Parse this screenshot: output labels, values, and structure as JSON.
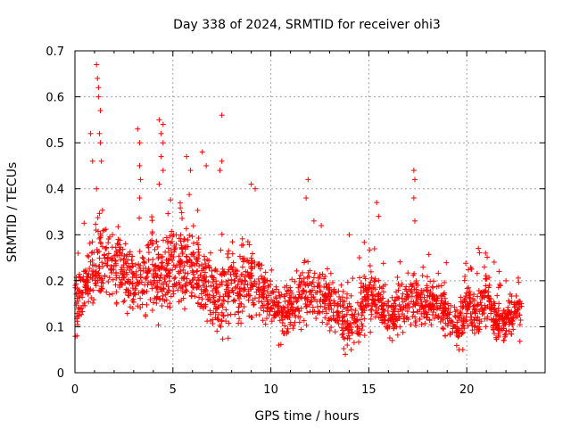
{
  "chart_data": {
    "type": "scatter",
    "title": "Day 338 of 2024, SRMTID for receiver ohi3",
    "xlabel": "GPS time / hours",
    "ylabel": "SRMTID / TECUs",
    "xlim": [
      0,
      24
    ],
    "ylim": [
      0,
      0.7
    ],
    "xticks": [
      0,
      5,
      10,
      15,
      20
    ],
    "xtick_labels": [
      "0",
      "5",
      "10",
      "15",
      "20"
    ],
    "yticks": [
      0,
      0.1,
      0.2,
      0.3,
      0.4,
      0.5,
      0.6,
      0.7
    ],
    "ytick_labels": [
      "0",
      "0.1",
      "0.2",
      "0.3",
      "0.4",
      "0.5",
      "0.6",
      "0.7"
    ],
    "grid": true,
    "marker": "plus",
    "series": [
      {
        "name": "SRMTID",
        "color": "#ff0000",
        "envelope": {
          "t": [
            0,
            0.5,
            1,
            1.5,
            2,
            2.5,
            3,
            3.5,
            4,
            4.5,
            5,
            5.5,
            6,
            6.5,
            7,
            7.5,
            8,
            8.5,
            9,
            9.5,
            10,
            10.5,
            11,
            11.5,
            12,
            12.5,
            13,
            13.5,
            14,
            14.5,
            15,
            15.5,
            16,
            16.5,
            17,
            17.5,
            18,
            18.5,
            19,
            19.5,
            20,
            20.5,
            21,
            21.5,
            22,
            22.5,
            22.8
          ],
          "center": [
            0.15,
            0.18,
            0.22,
            0.24,
            0.24,
            0.22,
            0.19,
            0.21,
            0.22,
            0.22,
            0.23,
            0.24,
            0.22,
            0.2,
            0.17,
            0.16,
            0.19,
            0.19,
            0.2,
            0.18,
            0.16,
            0.13,
            0.14,
            0.16,
            0.18,
            0.16,
            0.15,
            0.13,
            0.1,
            0.12,
            0.17,
            0.16,
            0.12,
            0.13,
            0.16,
            0.15,
            0.15,
            0.16,
            0.12,
            0.1,
            0.14,
            0.13,
            0.17,
            0.11,
            0.11,
            0.13,
            0.13
          ],
          "spread": [
            0.05,
            0.06,
            0.07,
            0.07,
            0.07,
            0.07,
            0.07,
            0.07,
            0.08,
            0.08,
            0.08,
            0.08,
            0.08,
            0.07,
            0.07,
            0.07,
            0.07,
            0.07,
            0.07,
            0.06,
            0.05,
            0.05,
            0.05,
            0.06,
            0.06,
            0.05,
            0.05,
            0.05,
            0.05,
            0.05,
            0.06,
            0.05,
            0.04,
            0.05,
            0.05,
            0.05,
            0.05,
            0.05,
            0.05,
            0.05,
            0.05,
            0.05,
            0.05,
            0.04,
            0.04,
            0.04,
            0.05
          ]
        },
        "spikes": [
          [
            1.1,
            0.67
          ],
          [
            1.15,
            0.64
          ],
          [
            1.2,
            0.62
          ],
          [
            1.2,
            0.6
          ],
          [
            1.3,
            0.57
          ],
          [
            1.25,
            0.52
          ],
          [
            1.3,
            0.5
          ],
          [
            1.35,
            0.46
          ],
          [
            0.8,
            0.52
          ],
          [
            0.9,
            0.46
          ],
          [
            1.1,
            0.4
          ],
          [
            3.2,
            0.53
          ],
          [
            3.3,
            0.5
          ],
          [
            3.3,
            0.45
          ],
          [
            3.35,
            0.42
          ],
          [
            3.3,
            0.38
          ],
          [
            4.3,
            0.55
          ],
          [
            4.5,
            0.54
          ],
          [
            4.4,
            0.52
          ],
          [
            4.5,
            0.5
          ],
          [
            4.4,
            0.47
          ],
          [
            4.5,
            0.44
          ],
          [
            4.3,
            0.41
          ],
          [
            5.7,
            0.47
          ],
          [
            5.9,
            0.44
          ],
          [
            6.5,
            0.48
          ],
          [
            6.7,
            0.45
          ],
          [
            7.5,
            0.56
          ],
          [
            7.5,
            0.46
          ],
          [
            7.4,
            0.44
          ],
          [
            9.0,
            0.41
          ],
          [
            9.2,
            0.4
          ],
          [
            11.9,
            0.42
          ],
          [
            11.8,
            0.38
          ],
          [
            12.2,
            0.33
          ],
          [
            14.0,
            0.3
          ],
          [
            15.4,
            0.37
          ],
          [
            15.5,
            0.34
          ],
          [
            17.3,
            0.44
          ],
          [
            17.35,
            0.42
          ],
          [
            17.3,
            0.38
          ],
          [
            17.35,
            0.33
          ],
          [
            20.9,
            0.23
          ],
          [
            22.0,
            0.2
          ],
          [
            13.8,
            0.04
          ],
          [
            13.9,
            0.06
          ],
          [
            19.6,
            0.05
          ],
          [
            19.8,
            0.05
          ],
          [
            0.1,
            0.08
          ],
          [
            10.4,
            0.06
          ],
          [
            16.2,
            0.07
          ],
          [
            14.1,
            0.05
          ]
        ]
      }
    ]
  }
}
